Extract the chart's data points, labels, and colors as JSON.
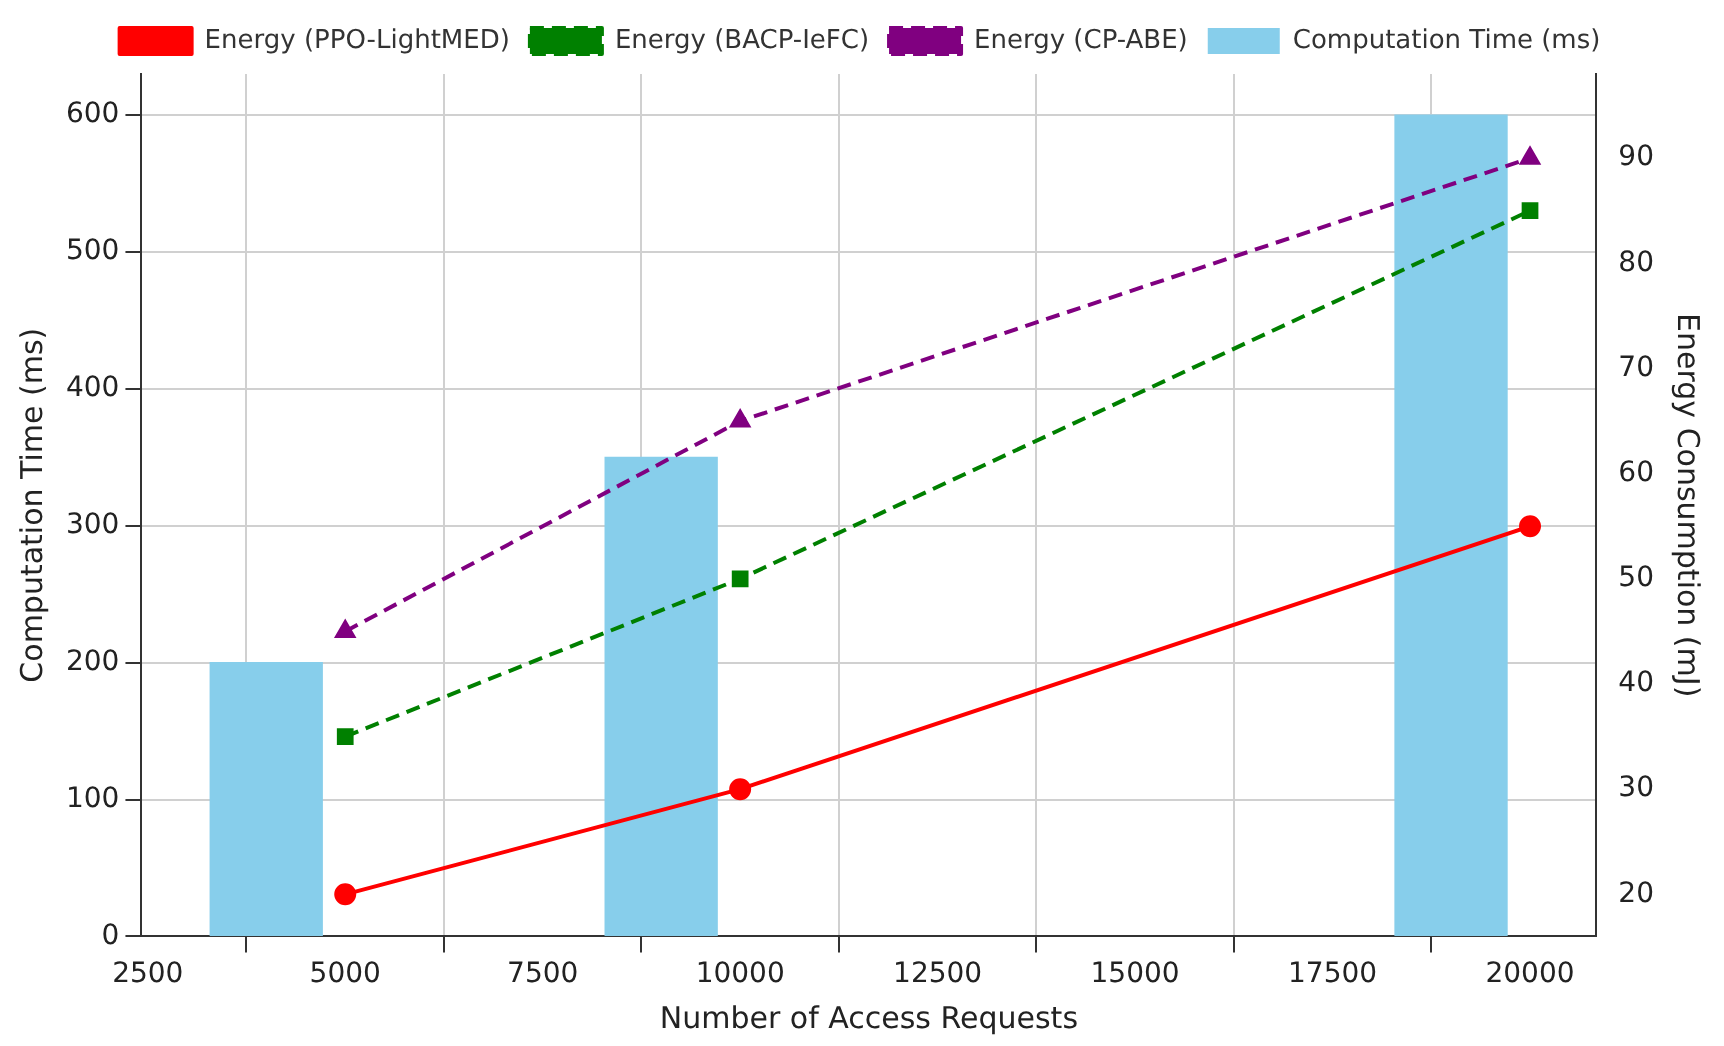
{
  "chart_data": {
    "type": "line",
    "xlabel": "Number of Access Requests",
    "ylabel": "Computation Time (ms)",
    "y2label": "Energy Consumption (mJ)",
    "xlim": [
      2420,
      20840
    ],
    "xticks": [
      2500,
      5000,
      7500,
      10000,
      12500,
      15000,
      17500,
      20000
    ],
    "ylim": [
      0,
      630
    ],
    "yticks": [
      0,
      100,
      200,
      300,
      400,
      500,
      600
    ],
    "y2lim": [
      16,
      98
    ],
    "y2ticks": [
      20,
      30,
      40,
      50,
      60,
      70,
      80,
      90
    ],
    "grid": true,
    "legend": "top",
    "series": [
      {
        "type": "bar",
        "name": "Computation Time (ms)",
        "color": "#87ceeb",
        "x": [
          4000,
          9000,
          19000
        ],
        "values": [
          200,
          350,
          600
        ]
      },
      {
        "name": "Energy (PPO-LightMED)",
        "color": "#ff0000",
        "axis": "y2",
        "marker": "circle",
        "line_style": "solid",
        "x": [
          5000,
          10000,
          20000
        ],
        "values": [
          20,
          30,
          55
        ]
      },
      {
        "name": "Energy (BACP-IeFC)",
        "color": "#008000",
        "axis": "y2",
        "marker": "square",
        "line_style": "dashed",
        "x": [
          5000,
          10000,
          20000
        ],
        "values": [
          35,
          50,
          85
        ]
      },
      {
        "name": "Energy (CP-ABE)",
        "color": "#800080",
        "axis": "y2",
        "marker": "triangle",
        "line_style": "dashed",
        "x": [
          5000,
          10000,
          20000
        ],
        "values": [
          45,
          65,
          90
        ]
      }
    ]
  }
}
